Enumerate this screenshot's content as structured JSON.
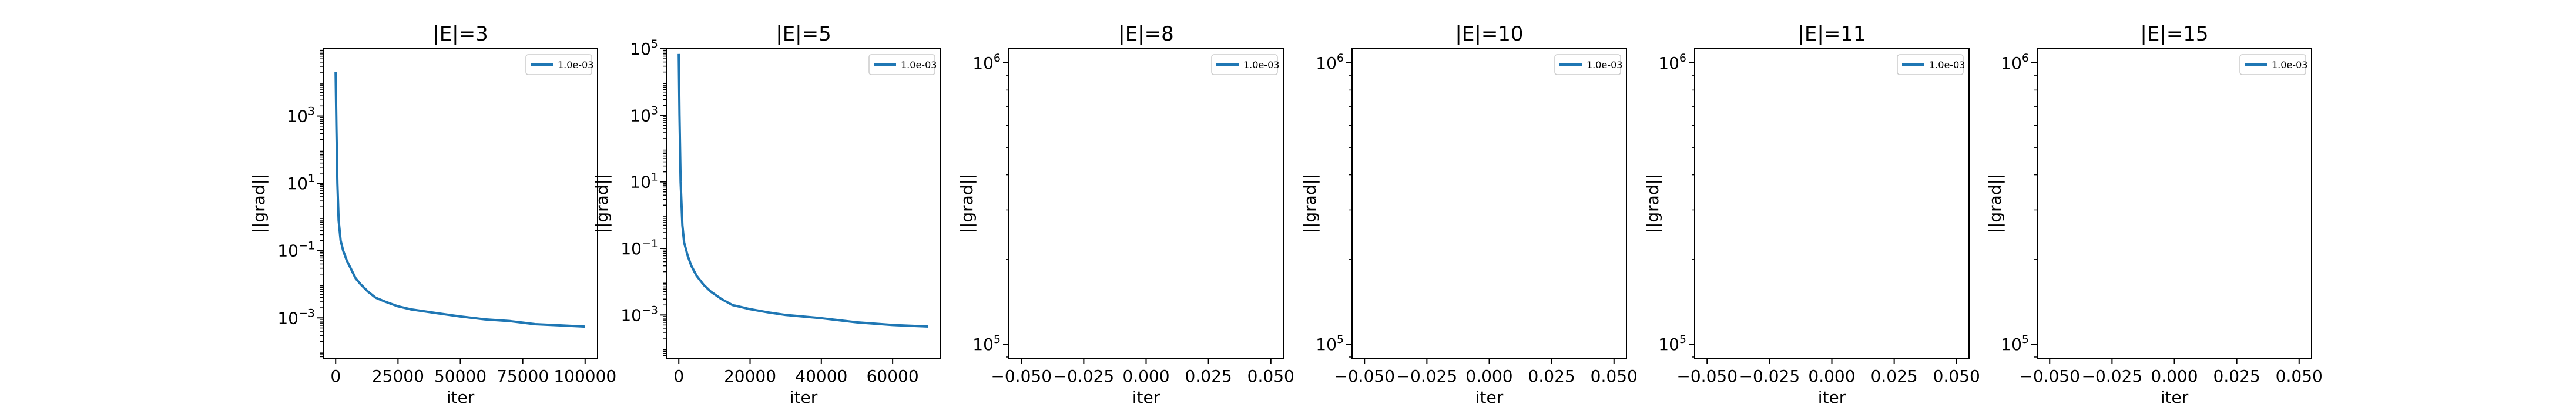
{
  "chart_data": [
    {
      "type": "line",
      "title": "|E|=3",
      "xlabel": "iter",
      "ylabel": "||grad||",
      "yscale": "log",
      "xlim": [
        -5000,
        105000
      ],
      "ylim_log10": [
        -4.2,
        5.0
      ],
      "xticks": [
        0,
        25000,
        50000,
        75000,
        100000
      ],
      "xtick_labels": [
        "0",
        "25000",
        "50000",
        "75000",
        "100000"
      ],
      "yticks_log10": [
        -3,
        -1,
        1,
        3
      ],
      "ytick_labels": [
        "10^-3",
        "10^-1",
        "10^1",
        "10^3"
      ],
      "legend": "upper right",
      "grid": false,
      "series": [
        {
          "name": "1.0e-03",
          "color": "#1f77b4",
          "x": [
            0,
            300,
            700,
            1200,
            2000,
            3000,
            4500,
            6000,
            8000,
            10000,
            13000,
            16000,
            20000,
            25000,
            30000,
            40000,
            50000,
            60000,
            70000,
            80000,
            90000,
            100000
          ],
          "y": [
            20000,
            500,
            10,
            0.8,
            0.2,
            0.1,
            0.05,
            0.03,
            0.015,
            0.01,
            0.006,
            0.004,
            0.003,
            0.0022,
            0.0018,
            0.0014,
            0.0011,
            0.0009,
            0.0008,
            0.00065,
            0.0006,
            0.00055
          ]
        }
      ]
    },
    {
      "type": "line",
      "title": "|E|=5",
      "xlabel": "iter",
      "ylabel": "||grad||",
      "yscale": "log",
      "xlim": [
        -3500,
        73500
      ],
      "ylim_log10": [
        -4.3,
        5.0
      ],
      "xticks": [
        0,
        20000,
        40000,
        60000
      ],
      "xtick_labels": [
        "0",
        "20000",
        "40000",
        "60000"
      ],
      "yticks_log10": [
        -3,
        -1,
        1,
        3,
        5
      ],
      "ytick_labels": [
        "10^-3",
        "10^-1",
        "10^1",
        "10^3",
        "10^5"
      ],
      "legend": "upper right",
      "grid": false,
      "series": [
        {
          "name": "1.0e-03",
          "color": "#1f77b4",
          "x": [
            0,
            200,
            500,
            1000,
            1500,
            2500,
            3500,
            5000,
            7000,
            9000,
            12000,
            15000,
            20000,
            25000,
            30000,
            40000,
            50000,
            60000,
            70000
          ],
          "y": [
            70000,
            1000,
            10,
            0.5,
            0.15,
            0.06,
            0.03,
            0.015,
            0.008,
            0.005,
            0.003,
            0.002,
            0.0015,
            0.0012,
            0.001,
            0.0008,
            0.0006,
            0.0005,
            0.00045
          ]
        }
      ]
    },
    {
      "type": "line",
      "title": "|E|=8",
      "xlabel": "iter",
      "ylabel": "||grad||",
      "yscale": "log",
      "xlim": [
        -0.055,
        0.055
      ],
      "ylim_log10": [
        4.95,
        6.05
      ],
      "xticks": [
        -0.05,
        -0.025,
        0.0,
        0.025,
        0.05
      ],
      "xtick_labels": [
        "−0.050",
        "−0.025",
        "0.000",
        "0.025",
        "0.050"
      ],
      "yticks_log10": [
        5,
        6
      ],
      "ytick_labels": [
        "10^5",
        "10^6"
      ],
      "legend": "upper right",
      "grid": false,
      "series": [
        {
          "name": "1.0e-03",
          "color": "#1f77b4",
          "x": [],
          "y": []
        }
      ]
    },
    {
      "type": "line",
      "title": "|E|=10",
      "xlabel": "iter",
      "ylabel": "||grad||",
      "yscale": "log",
      "xlim": [
        -0.055,
        0.055
      ],
      "ylim_log10": [
        4.95,
        6.05
      ],
      "xticks": [
        -0.05,
        -0.025,
        0.0,
        0.025,
        0.05
      ],
      "xtick_labels": [
        "−0.050",
        "−0.025",
        "0.000",
        "0.025",
        "0.050"
      ],
      "yticks_log10": [
        5,
        6
      ],
      "ytick_labels": [
        "10^5",
        "10^6"
      ],
      "legend": "upper right",
      "grid": false,
      "series": [
        {
          "name": "1.0e-03",
          "color": "#1f77b4",
          "x": [],
          "y": []
        }
      ]
    },
    {
      "type": "line",
      "title": "|E|=11",
      "xlabel": "iter",
      "ylabel": "||grad||",
      "yscale": "log",
      "xlim": [
        -0.055,
        0.055
      ],
      "ylim_log10": [
        4.95,
        6.05
      ],
      "xticks": [
        -0.05,
        -0.025,
        0.0,
        0.025,
        0.05
      ],
      "xtick_labels": [
        "−0.050",
        "−0.025",
        "0.000",
        "0.025",
        "0.050"
      ],
      "yticks_log10": [
        5,
        6
      ],
      "ytick_labels": [
        "10^5",
        "10^6"
      ],
      "legend": "upper right",
      "grid": false,
      "series": [
        {
          "name": "1.0e-03",
          "color": "#1f77b4",
          "x": [],
          "y": []
        }
      ]
    },
    {
      "type": "line",
      "title": "|E|=15",
      "xlabel": "iter",
      "ylabel": "||grad||",
      "yscale": "log",
      "xlim": [
        -0.055,
        0.055
      ],
      "ylim_log10": [
        4.95,
        6.05
      ],
      "xticks": [
        -0.05,
        -0.025,
        0.0,
        0.025,
        0.05
      ],
      "xtick_labels": [
        "−0.050",
        "−0.025",
        "0.000",
        "0.025",
        "0.050"
      ],
      "yticks_log10": [
        5,
        6
      ],
      "ytick_labels": [
        "10^5",
        "10^6"
      ],
      "legend": "upper right",
      "grid": false,
      "series": [
        {
          "name": "1.0e-03",
          "color": "#1f77b4",
          "x": [],
          "y": []
        }
      ]
    }
  ]
}
